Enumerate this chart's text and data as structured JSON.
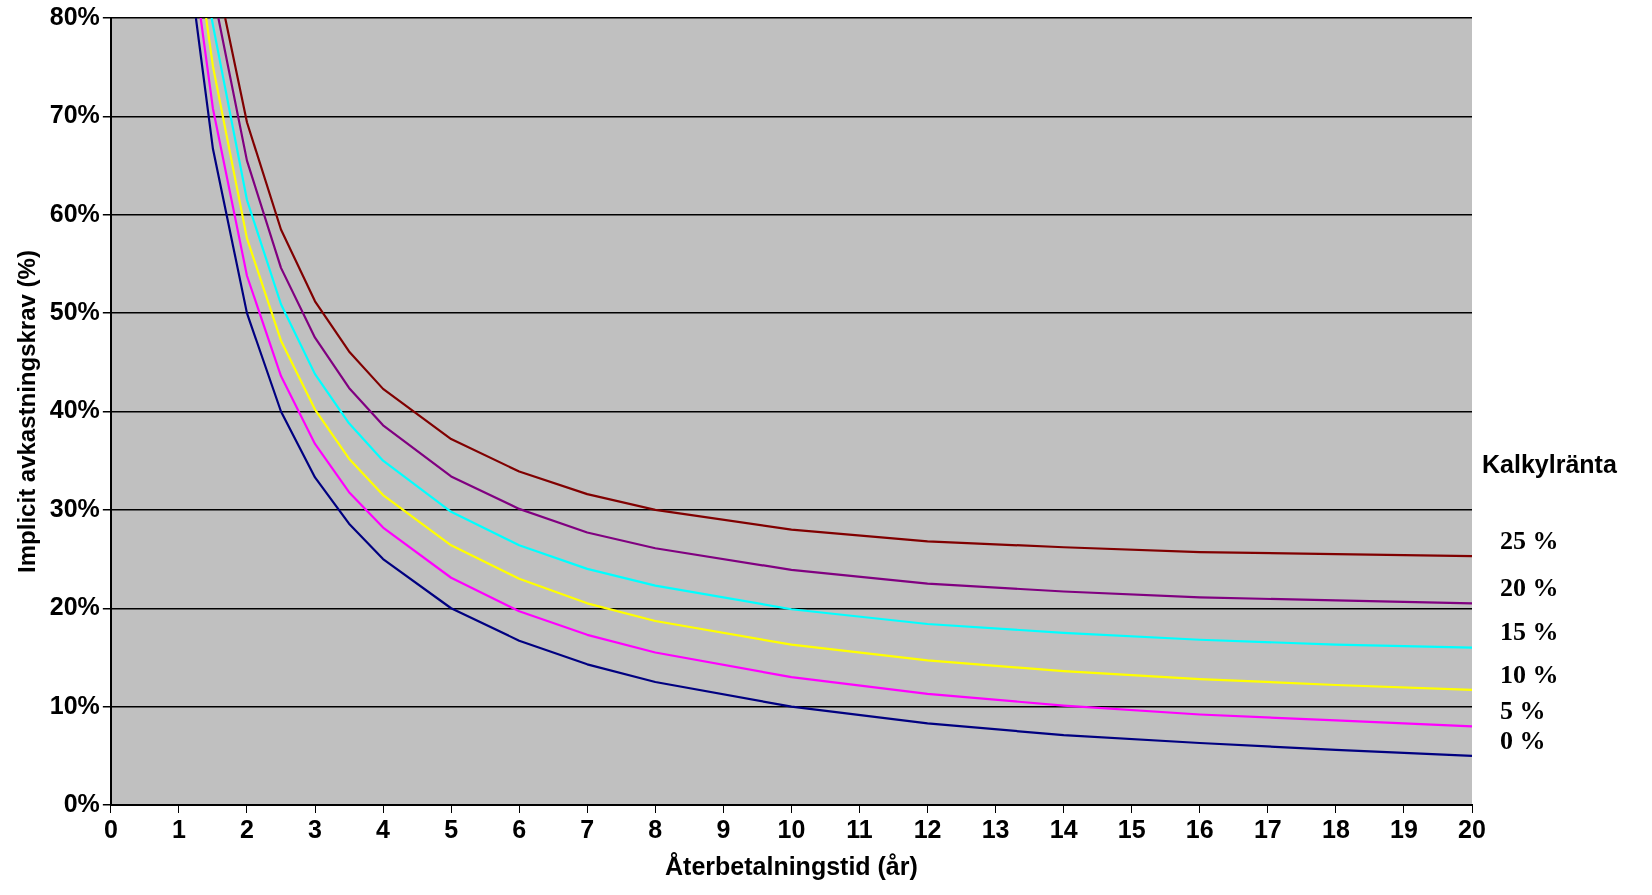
{
  "chart_data": {
    "type": "line",
    "xlabel": "Återbetalningstid (år)",
    "ylabel": "Implicit avkastningskrav (%)",
    "legend_title": "Kalkylränta",
    "legend": "right",
    "grid": "y",
    "xlim": [
      0,
      20
    ],
    "xticks": [
      0,
      1,
      2,
      3,
      4,
      5,
      6,
      7,
      8,
      9,
      10,
      11,
      12,
      13,
      14,
      15,
      16,
      17,
      18,
      19,
      20
    ],
    "ylim": [
      0,
      80
    ],
    "yticks": [
      {
        "value": 0,
        "label": "0%"
      },
      {
        "value": 10,
        "label": "10%"
      },
      {
        "value": 20,
        "label": "20%"
      },
      {
        "value": 30,
        "label": "30%"
      },
      {
        "value": 40,
        "label": "40%"
      },
      {
        "value": 50,
        "label": "50%"
      },
      {
        "value": 60,
        "label": "60%"
      },
      {
        "value": 70,
        "label": "70%"
      },
      {
        "value": 80,
        "label": "80%"
      }
    ],
    "series": [
      {
        "name": "25 %",
        "color": "#800000",
        "x": [
          1.68,
          2,
          2.5,
          3,
          3.5,
          4,
          5,
          6,
          7,
          8,
          10,
          12,
          14,
          16,
          18,
          20
        ],
        "values": [
          80,
          69.4,
          58.5,
          51.2,
          46.1,
          42.3,
          37.2,
          33.9,
          31.6,
          30,
          28,
          26.8,
          26.2,
          25.7,
          25.5,
          25.3
        ]
      },
      {
        "name": "20 %",
        "color": "#800080",
        "x": [
          1.58,
          2,
          2.5,
          3,
          3.5,
          4,
          5,
          6,
          7,
          8,
          10,
          12,
          14,
          16,
          18,
          20
        ],
        "values": [
          80,
          65.5,
          54.6,
          47.5,
          42.4,
          38.6,
          33.4,
          30.1,
          27.7,
          26.1,
          23.9,
          22.5,
          21.7,
          21.1,
          20.8,
          20.5
        ]
      },
      {
        "name": "15 %",
        "color": "#00ffff",
        "x": [
          1.48,
          2,
          2.5,
          3,
          3.5,
          4,
          5,
          6,
          7,
          8,
          10,
          12,
          14,
          16,
          18,
          20
        ],
        "values": [
          80,
          61.5,
          50.9,
          43.8,
          38.8,
          35,
          29.8,
          26.4,
          24,
          22.3,
          19.9,
          18.4,
          17.5,
          16.8,
          16.3,
          16
        ]
      },
      {
        "name": "10 %",
        "color": "#ffff00",
        "x": [
          1.4,
          1.5,
          2,
          2.5,
          3,
          3.5,
          4,
          5,
          6,
          7,
          8,
          10,
          12,
          14,
          16,
          18,
          20
        ],
        "values": [
          80,
          75.1,
          57.6,
          47.2,
          40.2,
          35.2,
          31.5,
          26.4,
          23,
          20.5,
          18.7,
          16.3,
          14.7,
          13.6,
          12.8,
          12.2,
          11.7
        ]
      },
      {
        "name": "5 %",
        "color": "#ff00ff",
        "x": [
          1.32,
          1.5,
          2,
          2.5,
          3,
          3.5,
          4,
          5,
          6,
          7,
          8,
          10,
          12,
          14,
          16,
          18,
          20
        ],
        "values": [
          80,
          70.8,
          53.8,
          43.6,
          36.7,
          31.8,
          28.2,
          23.1,
          19.7,
          17.3,
          15.5,
          13,
          11.3,
          10.1,
          9.2,
          8.6,
          8
        ]
      },
      {
        "name": "0 %",
        "color": "#000080",
        "x": [
          1.25,
          1.5,
          2,
          2.5,
          3,
          3.5,
          4,
          5,
          6,
          7,
          8,
          10,
          12,
          14,
          16,
          18,
          20
        ],
        "values": [
          80,
          66.7,
          50,
          40,
          33.3,
          28.6,
          25,
          20,
          16.7,
          14.3,
          12.5,
          10,
          8.3,
          7.1,
          6.3,
          5.6,
          5
        ]
      }
    ]
  }
}
